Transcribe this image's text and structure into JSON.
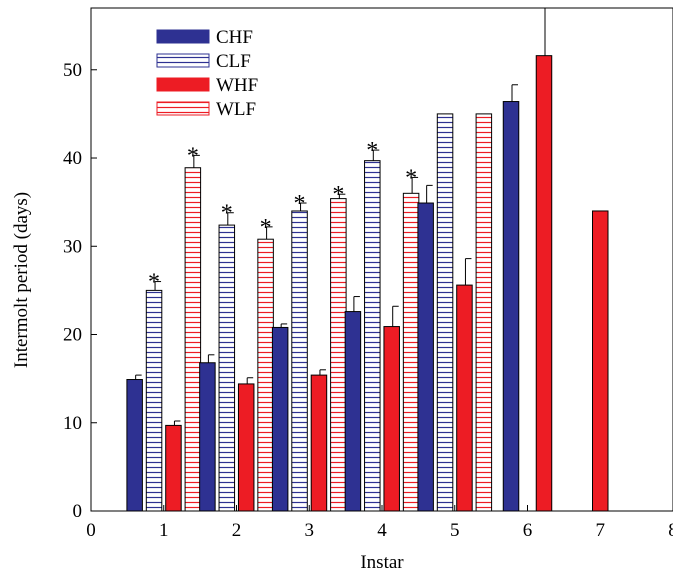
{
  "chart_data": {
    "type": "bar",
    "xlabel": "Instar",
    "ylabel": "Intermolt period (days)",
    "xlim": [
      0,
      8
    ],
    "ylim": [
      0,
      57
    ],
    "xticks": [
      "0",
      "1",
      "2",
      "3",
      "4",
      "5",
      "6",
      "7",
      "8"
    ],
    "yticks": [
      "0",
      "10",
      "20",
      "30",
      "40",
      "50"
    ],
    "legend_position": "top-left",
    "grid": false,
    "significance_marker": "*",
    "categories": [
      "1",
      "2",
      "3",
      "4",
      "5",
      "6",
      "7"
    ],
    "series": [
      {
        "name": "CHF",
        "fill": "solid",
        "color": "#2e3192",
        "values": [
          14.9,
          16.8,
          20.8,
          22.6,
          34.9,
          46.4,
          null
        ],
        "errors": [
          0.5,
          0.9,
          0.4,
          1.7,
          2.0,
          1.9,
          null
        ],
        "significant": [
          false,
          false,
          false,
          false,
          false,
          false,
          false
        ]
      },
      {
        "name": "CLF",
        "fill": "horizontal-lines",
        "color": "#2e3192",
        "values": [
          25.0,
          32.4,
          34.0,
          39.7,
          45.0,
          null,
          null
        ],
        "errors": [
          1.0,
          1.4,
          0.9,
          1.2,
          null,
          null,
          null
        ],
        "significant": [
          true,
          true,
          true,
          true,
          false,
          false,
          false
        ]
      },
      {
        "name": "WHF",
        "fill": "solid",
        "color": "#ed1c24",
        "values": [
          9.7,
          14.4,
          15.4,
          20.9,
          25.6,
          51.6,
          34.0
        ],
        "errors": [
          0.5,
          0.7,
          0.6,
          2.3,
          3.0,
          5.4,
          null
        ],
        "significant": [
          false,
          false,
          false,
          false,
          false,
          false,
          false
        ]
      },
      {
        "name": "WLF",
        "fill": "horizontal-lines",
        "color": "#ed1c24",
        "values": [
          38.9,
          30.8,
          35.4,
          36.0,
          45.0,
          null,
          null
        ],
        "errors": [
          1.4,
          1.4,
          0.5,
          1.8,
          null,
          null,
          null
        ],
        "significant": [
          true,
          true,
          true,
          true,
          false,
          false,
          false
        ]
      }
    ]
  }
}
